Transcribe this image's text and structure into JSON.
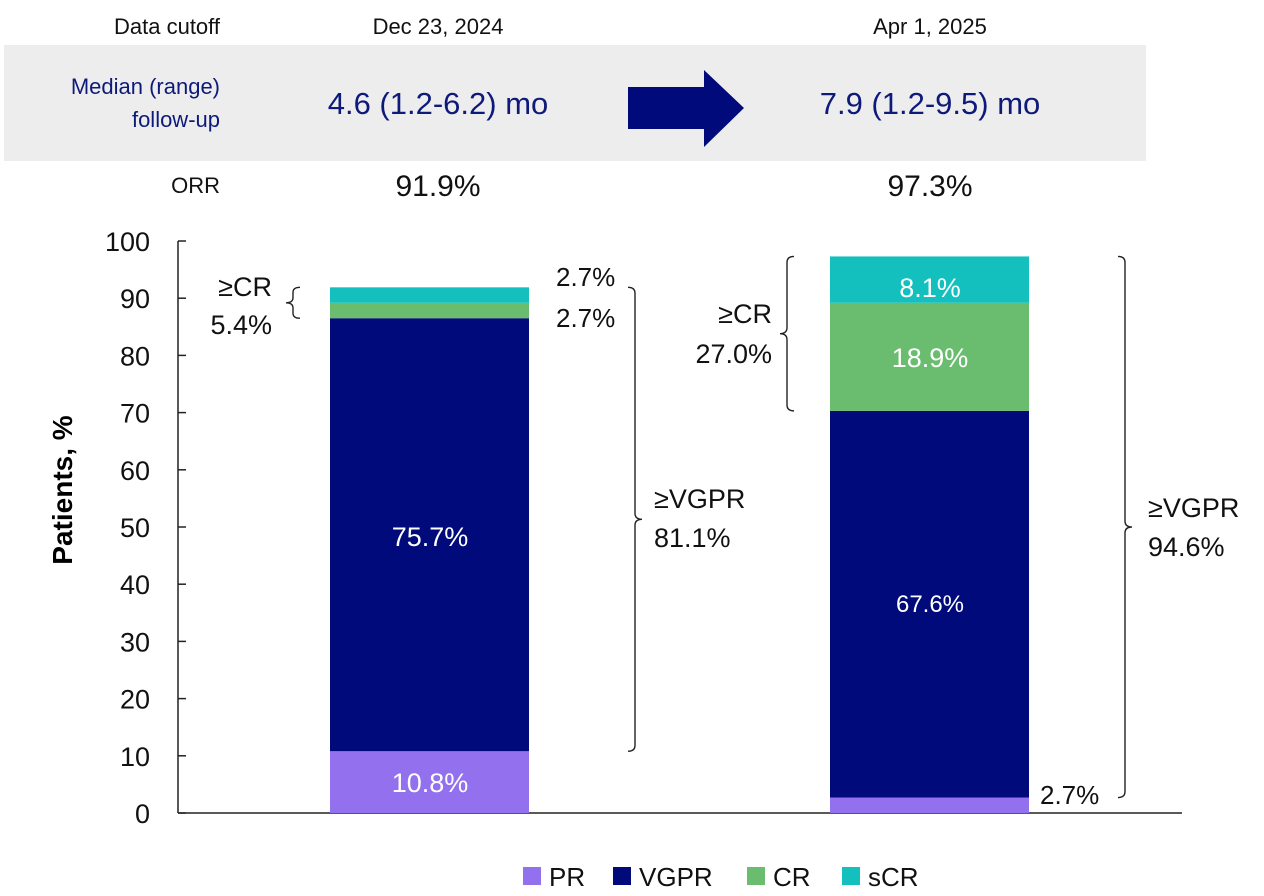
{
  "header": {
    "cutoff_label": "Data cutoff",
    "followup_label_line1": "Median (range)",
    "followup_label_line2": "follow-up",
    "orr_label": "ORR"
  },
  "colors": {
    "PR": "#9370ee",
    "VGPR": "#000a7a",
    "CR": "#6abd6f",
    "sCR": "#13c0be",
    "panel_bg": "#ededed",
    "navy_text": "#0e1a7a",
    "arrow": "#000a7a"
  },
  "chart_data": {
    "type": "bar",
    "stacked": true,
    "ylabel": "Patients, %",
    "ylim": [
      0,
      100
    ],
    "yticks": [
      0,
      10,
      20,
      30,
      40,
      50,
      60,
      70,
      80,
      90,
      100
    ],
    "legend": [
      "PR",
      "VGPR",
      "CR",
      "sCR"
    ],
    "legend_position": "bottom",
    "categories": [
      "Dec 23, 2024",
      "Apr 1, 2025"
    ],
    "followup": [
      "4.6 (1.2-6.2) mo",
      "7.9 (1.2-9.5) mo"
    ],
    "orr": [
      "91.9%",
      "97.3%"
    ],
    "series": [
      {
        "name": "PR",
        "values": [
          10.8,
          2.7
        ],
        "labels": [
          "10.8%",
          "2.7%"
        ]
      },
      {
        "name": "VGPR",
        "values": [
          75.7,
          67.6
        ],
        "labels": [
          "75.7%",
          "67.6%"
        ]
      },
      {
        "name": "CR",
        "values": [
          2.7,
          18.9
        ],
        "labels": [
          "2.7%",
          "18.9%"
        ]
      },
      {
        "name": "sCR",
        "values": [
          2.7,
          8.1
        ],
        "labels": [
          "2.7%",
          "8.1%"
        ]
      }
    ],
    "annotations": [
      {
        "bar": 0,
        "from": 86.5,
        "to": 91.9,
        "line1": "≥CR",
        "line2": "5.4%",
        "side": "left"
      },
      {
        "bar": 0,
        "from": 10.8,
        "to": 91.9,
        "line1": "≥VGPR",
        "line2": "81.1%",
        "side": "right"
      },
      {
        "bar": 1,
        "from": 70.3,
        "to": 97.3,
        "line1": "≥CR",
        "line2": "27.0%",
        "side": "left"
      },
      {
        "bar": 1,
        "from": 2.7,
        "to": 97.3,
        "line1": "≥VGPR",
        "line2": "94.6%",
        "side": "right"
      }
    ]
  }
}
